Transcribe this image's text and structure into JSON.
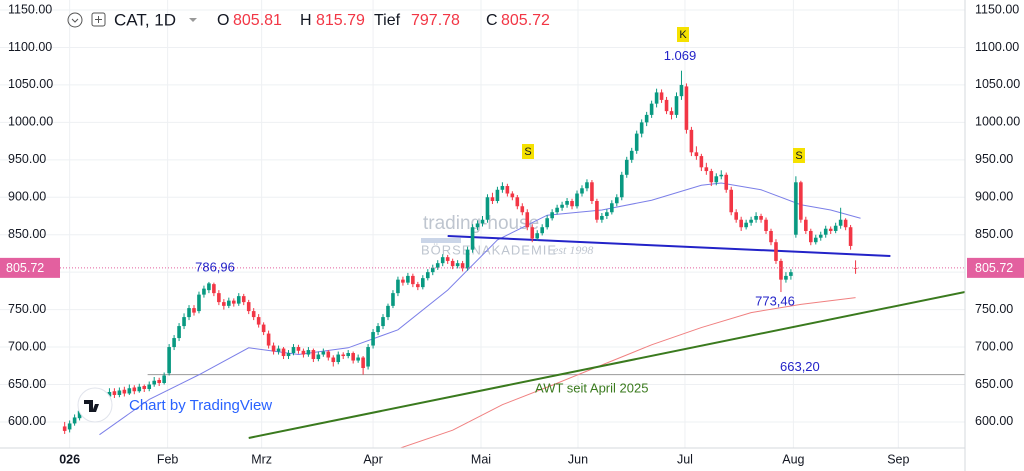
{
  "chart_data": {
    "type": "candlestick",
    "symbol": "CAT, 1D",
    "ohlc_labels": {
      "open": "O",
      "high": "H",
      "low": "Tief",
      "close": "C"
    },
    "colors": {
      "up": "#089981",
      "down": "#f23645",
      "last_price": "#e3609f",
      "grid": "#eef0f3"
    },
    "xlim": [
      -13,
      181
    ],
    "ylim": [
      565.2,
      1163.4
    ],
    "yticks": [
      {
        "value": 600,
        "label": "600.00"
      },
      {
        "value": 650,
        "label": "650.00"
      },
      {
        "value": 700,
        "label": "700.00"
      },
      {
        "value": 750,
        "label": "750.00"
      },
      {
        "value": 800,
        "label": "800.00"
      },
      {
        "value": 850,
        "label": "850.00"
      },
      {
        "value": 900,
        "label": "900.00"
      },
      {
        "value": 950,
        "label": "950.00"
      },
      {
        "value": 1000,
        "label": "1000.00"
      },
      {
        "value": 1050,
        "label": "1050.00"
      },
      {
        "value": 1100,
        "label": "1100.00"
      },
      {
        "value": 1150,
        "label": "1150.00"
      }
    ],
    "xticks": [
      {
        "value": 1,
        "label": "026"
      },
      {
        "value": 20.7,
        "label": "Feb"
      },
      {
        "value": 39.6,
        "label": "Mrz"
      },
      {
        "value": 62,
        "label": "Apr"
      },
      {
        "value": 83.7,
        "label": "Mai"
      },
      {
        "value": 103.2,
        "label": "Jun"
      },
      {
        "value": 124.7,
        "label": "Jul"
      },
      {
        "value": 146.5,
        "label": "Aug"
      },
      {
        "value": 167.6,
        "label": "Sep"
      }
    ],
    "candles": [
      [
        594,
        600,
        584,
        588
      ],
      [
        590,
        602,
        586,
        598
      ],
      [
        598,
        610,
        595,
        606
      ],
      [
        605,
        619,
        602,
        615
      ],
      [
        616,
        620,
        608,
        612
      ],
      [
        612,
        624,
        609,
        620
      ],
      [
        620,
        632,
        617,
        628
      ],
      [
        629,
        633,
        620,
        624
      ],
      [
        624,
        638,
        622,
        634
      ],
      [
        634,
        645,
        630,
        640
      ],
      [
        641,
        645,
        632,
        636
      ],
      [
        636,
        646,
        633,
        642
      ],
      [
        643,
        647,
        634,
        638
      ],
      [
        638,
        650,
        636,
        645
      ],
      [
        646,
        649,
        637,
        641
      ],
      [
        641,
        651,
        639,
        647
      ],
      [
        648,
        650,
        640,
        644
      ],
      [
        644,
        654,
        641,
        650
      ],
      [
        650,
        660,
        647,
        655
      ],
      [
        656,
        659,
        648,
        652
      ],
      [
        652,
        666,
        650,
        662
      ],
      [
        665,
        704,
        662,
        700
      ],
      [
        700,
        716,
        696,
        712
      ],
      [
        712,
        732,
        708,
        728
      ],
      [
        728,
        745,
        724,
        740
      ],
      [
        740,
        756,
        736,
        752
      ],
      [
        752,
        756,
        742,
        746
      ],
      [
        748,
        774,
        745,
        770
      ],
      [
        770,
        782,
        766,
        778
      ],
      [
        776,
        786.96,
        772,
        785
      ],
      [
        784,
        786,
        768,
        772
      ],
      [
        772,
        776,
        756,
        760
      ],
      [
        760,
        764,
        750,
        755
      ],
      [
        755,
        766,
        752,
        762
      ],
      [
        762,
        765,
        754,
        758
      ],
      [
        758,
        772,
        755,
        768
      ],
      [
        768,
        771,
        756,
        760
      ],
      [
        760,
        763,
        744,
        748
      ],
      [
        748,
        752,
        736,
        740
      ],
      [
        740,
        744,
        726,
        730
      ],
      [
        730,
        733,
        716,
        720
      ],
      [
        718,
        722,
        698,
        702
      ],
      [
        702,
        706,
        690,
        694
      ],
      [
        694,
        702,
        690,
        698
      ],
      [
        698,
        700,
        684,
        688
      ],
      [
        688,
        696,
        684,
        692
      ],
      [
        692,
        704,
        689,
        700
      ],
      [
        700,
        703,
        691,
        695
      ],
      [
        695,
        698,
        686,
        690
      ],
      [
        690,
        700,
        687,
        696
      ],
      [
        696,
        698,
        680,
        684
      ],
      [
        684,
        694,
        681,
        690
      ],
      [
        690,
        698,
        687,
        694
      ],
      [
        694,
        696,
        682,
        686
      ],
      [
        686,
        689,
        674,
        680
      ],
      [
        680,
        694,
        677,
        690
      ],
      [
        690,
        693,
        684,
        688
      ],
      [
        688,
        696,
        685,
        692
      ],
      [
        692,
        694,
        678,
        682
      ],
      [
        682,
        690,
        679,
        686
      ],
      [
        686,
        688,
        663.2,
        672
      ],
      [
        674,
        704,
        670,
        700
      ],
      [
        702,
        724,
        698,
        720
      ],
      [
        720,
        732,
        716,
        728
      ],
      [
        728,
        744,
        724,
        740
      ],
      [
        740,
        758,
        736,
        755
      ],
      [
        755,
        776,
        752,
        772
      ],
      [
        772,
        794,
        768,
        790
      ],
      [
        790,
        794,
        782,
        786
      ],
      [
        786,
        799,
        783,
        795
      ],
      [
        795,
        798,
        780,
        784
      ],
      [
        784,
        787,
        776,
        780
      ],
      [
        780,
        796,
        777,
        792
      ],
      [
        792,
        804,
        789,
        800
      ],
      [
        800,
        810,
        796,
        806
      ],
      [
        806,
        816,
        803,
        812
      ],
      [
        812,
        824,
        808,
        820
      ],
      [
        820,
        823,
        811,
        815
      ],
      [
        815,
        818,
        804,
        808
      ],
      [
        808,
        816,
        805,
        812
      ],
      [
        812,
        815,
        801,
        805
      ],
      [
        805,
        834,
        802,
        830
      ],
      [
        830,
        864,
        826,
        860
      ],
      [
        860,
        869,
        856,
        865
      ],
      [
        865,
        875,
        861,
        870
      ],
      [
        870,
        904,
        866,
        900
      ],
      [
        900,
        906,
        891,
        895
      ],
      [
        895,
        914,
        892,
        910
      ],
      [
        910,
        920,
        906,
        915
      ],
      [
        915,
        918,
        901,
        905
      ],
      [
        905,
        908,
        896,
        900
      ],
      [
        900,
        903,
        884,
        888
      ],
      [
        888,
        892,
        876,
        880
      ],
      [
        880,
        884,
        856,
        860
      ],
      [
        860,
        864,
        840,
        845
      ],
      [
        845,
        856,
        842,
        852
      ],
      [
        852,
        864,
        849,
        860
      ],
      [
        860,
        876,
        857,
        872
      ],
      [
        872,
        884,
        869,
        880
      ],
      [
        880,
        890,
        877,
        886
      ],
      [
        886,
        894,
        882,
        890
      ],
      [
        890,
        899,
        886,
        895
      ],
      [
        895,
        898,
        884,
        888
      ],
      [
        888,
        909,
        885,
        905
      ],
      [
        905,
        916,
        901,
        912
      ],
      [
        912,
        924,
        908,
        920
      ],
      [
        920,
        923,
        891,
        895
      ],
      [
        895,
        898,
        866,
        870
      ],
      [
        870,
        879,
        866,
        875
      ],
      [
        875,
        884,
        871,
        880
      ],
      [
        880,
        896,
        877,
        892
      ],
      [
        892,
        904,
        888,
        900
      ],
      [
        900,
        934,
        896,
        930
      ],
      [
        930,
        954,
        926,
        950
      ],
      [
        950,
        966,
        946,
        962
      ],
      [
        962,
        989,
        958,
        985
      ],
      [
        985,
        1004,
        980,
        1000
      ],
      [
        1000,
        1014,
        995,
        1010
      ],
      [
        1010,
        1029,
        1006,
        1025
      ],
      [
        1025,
        1045,
        1020,
        1040
      ],
      [
        1040,
        1044,
        1026,
        1030
      ],
      [
        1030,
        1034,
        1011,
        1015
      ],
      [
        1015,
        1020,
        1004,
        1010
      ],
      [
        1010,
        1040,
        1006,
        1035
      ],
      [
        1035,
        1069,
        1030,
        1050
      ],
      [
        1048,
        1052,
        985,
        990
      ],
      [
        990,
        994,
        955,
        960
      ],
      [
        960,
        968,
        950,
        955
      ],
      [
        955,
        958,
        935,
        940
      ],
      [
        940,
        946,
        930,
        935
      ],
      [
        935,
        938,
        915,
        920
      ],
      [
        920,
        932,
        916,
        928
      ],
      [
        928,
        936,
        924,
        930
      ],
      [
        930,
        933,
        906,
        910
      ],
      [
        910,
        914,
        876,
        880
      ],
      [
        880,
        884,
        866,
        870
      ],
      [
        870,
        874,
        855,
        860
      ],
      [
        860,
        870,
        857,
        866
      ],
      [
        866,
        874,
        862,
        870
      ],
      [
        870,
        880,
        866,
        875
      ],
      [
        875,
        878,
        866,
        870
      ],
      [
        870,
        873,
        851,
        855
      ],
      [
        855,
        858,
        836,
        840
      ],
      [
        840,
        844,
        811,
        815
      ],
      [
        815,
        818,
        773.46,
        790
      ],
      [
        790,
        800,
        786,
        795
      ],
      [
        795,
        804,
        790,
        800
      ],
      [
        850,
        928,
        846,
        920
      ],
      [
        920,
        922,
        866,
        870
      ],
      [
        870,
        874,
        851,
        855
      ],
      [
        855,
        858,
        836,
        840
      ],
      [
        840,
        850,
        837,
        846
      ],
      [
        846,
        854,
        842,
        850
      ],
      [
        850,
        862,
        846,
        858
      ],
      [
        858,
        861,
        851,
        855
      ],
      [
        855,
        866,
        852,
        862
      ],
      [
        862,
        886,
        858,
        870
      ],
      [
        870,
        872,
        856,
        860
      ],
      [
        860,
        863,
        830,
        835
      ],
      [
        805.81,
        815.79,
        797.78,
        805.72
      ]
    ],
    "series": [
      {
        "color": "#7b7fe8",
        "x": [
          7,
          17,
          27,
          37,
          47,
          57,
          67,
          77,
          87,
          97,
          108,
          118,
          128,
          132,
          140,
          148,
          154,
          160
        ],
        "values": [
          583,
          630,
          663,
          699,
          690,
          699,
          723,
          776,
          843,
          876,
          883,
          896,
          916,
          919,
          910,
          890,
          883,
          872
        ]
      },
      {
        "color": "#f08080",
        "x": [
          63,
          78,
          88,
          98,
          108,
          118,
          128,
          138,
          148,
          159
        ],
        "values": [
          555,
          589,
          623,
          649,
          676,
          703,
          726,
          746,
          757,
          766
        ]
      }
    ],
    "trendlines": [
      {
        "color": "#3a7a1e",
        "x": [
          37,
          181
        ],
        "values": [
          578.6,
          773.5
        ]
      },
      {
        "color": "#2323c8",
        "x": [
          77,
          166
        ],
        "values": [
          848.3,
          821.6
        ]
      }
    ],
    "level_line": {
      "value": 663.2,
      "label": "663,20",
      "color": "#9a9a9a"
    },
    "price_labels": [
      {
        "value": 786.96,
        "label": "786,96"
      },
      {
        "value": 1069,
        "label": "1.069"
      },
      {
        "value": 773.46,
        "label": "773,46"
      }
    ],
    "pattern_labels": [
      "S",
      "K",
      "S"
    ],
    "trend_label": "AWT seit April 2025",
    "watermark": [
      "trading-house",
      "BÖRSENAKADEMIE",
      "est 1998"
    ],
    "credit": "Chart by TradingView"
  }
}
